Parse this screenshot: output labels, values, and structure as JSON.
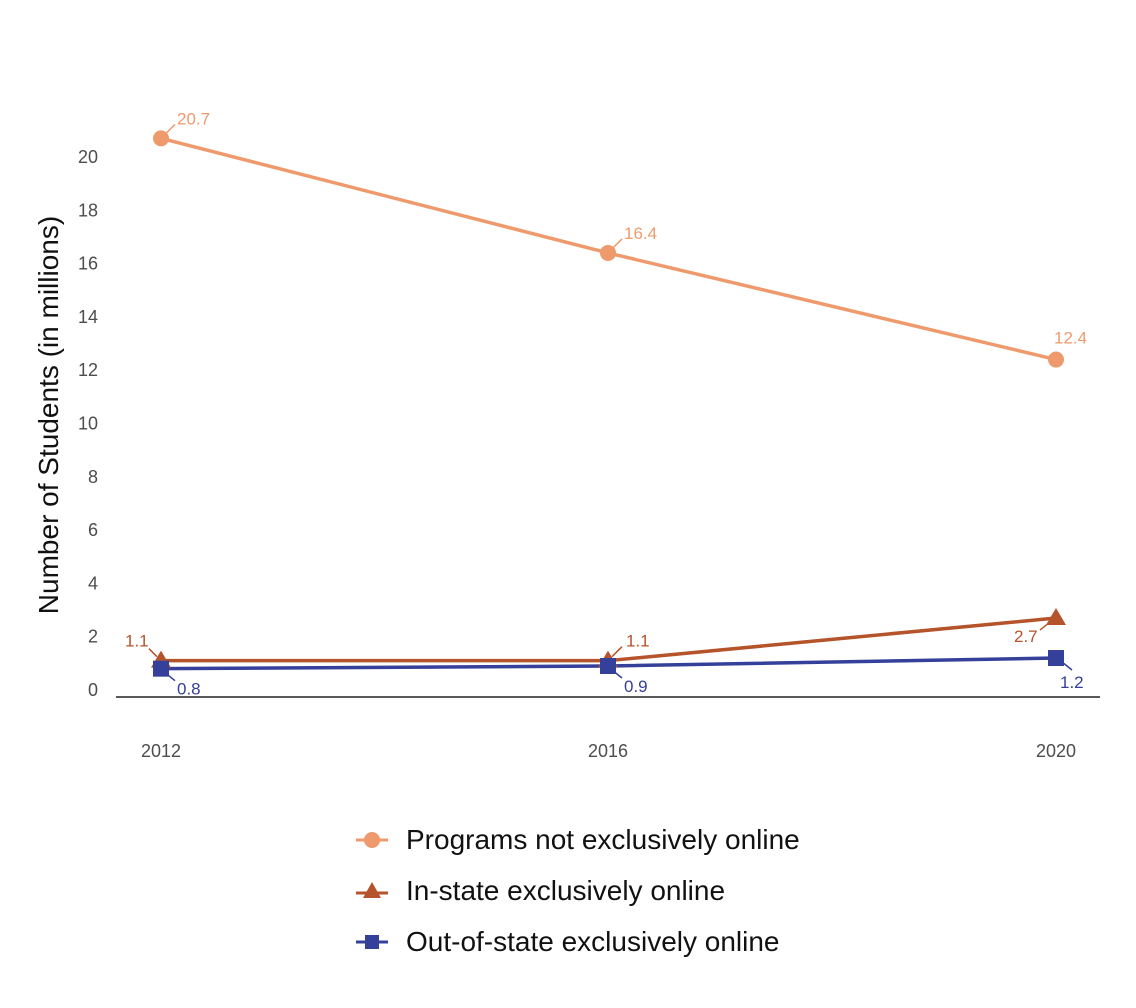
{
  "chart_data": {
    "type": "line",
    "title": "",
    "xlabel": "",
    "ylabel": "Number of Students (in millions)",
    "x": [
      "2012",
      "2016",
      "2020"
    ],
    "yticks": [
      0,
      2,
      4,
      6,
      8,
      10,
      12,
      14,
      16,
      18,
      20
    ],
    "ylim": [
      0,
      21.5
    ],
    "grid": false,
    "legend_position": "bottom",
    "series": [
      {
        "name": "Programs not exclusively online",
        "values": [
          20.7,
          16.4,
          12.4
        ],
        "labels": [
          "20.7",
          "16.4",
          "12.4"
        ],
        "color": "#EE9A6C",
        "marker": "circle"
      },
      {
        "name": "In-state exclusively online",
        "values": [
          1.1,
          1.1,
          2.7
        ],
        "labels": [
          "1.1",
          "1.1",
          "2.7"
        ],
        "color": "#B5532A",
        "marker": "triangle"
      },
      {
        "name": "Out-of-state exclusively online",
        "values": [
          0.8,
          0.9,
          1.2
        ],
        "labels": [
          "0.8",
          "0.9",
          "1.2"
        ],
        "color": "#35409A",
        "marker": "square"
      }
    ]
  }
}
